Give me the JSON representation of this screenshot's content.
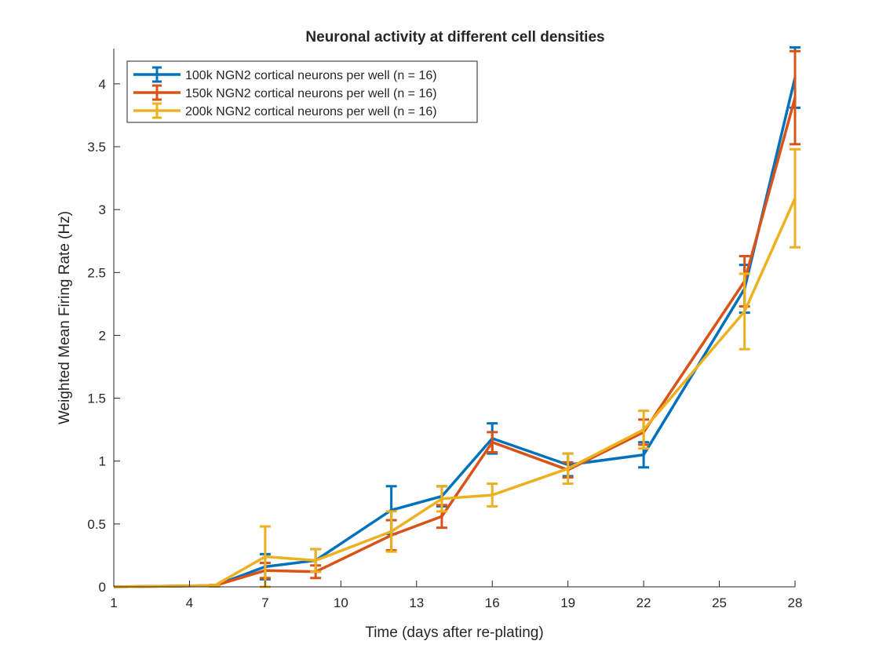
{
  "chart_data": {
    "type": "line",
    "title": "Neuronal activity at different cell densities",
    "xlabel": "Time (days after re-plating)",
    "ylabel": "Weighted Mean Firing Rate (Hz)",
    "xlim": [
      1,
      28
    ],
    "ylim": [
      0,
      4.28
    ],
    "x_ticks": [
      1,
      4,
      7,
      10,
      13,
      16,
      19,
      22,
      25,
      28
    ],
    "y_ticks": [
      0,
      0.5,
      1,
      1.5,
      2,
      2.5,
      3,
      3.5,
      4
    ],
    "y_tick_labels": [
      "0",
      "0.5",
      "1",
      "1.5",
      "2",
      "2.5",
      "3",
      "3.5",
      "4"
    ],
    "grid": false,
    "legend_position": "top-left",
    "x": [
      1,
      5,
      7,
      9,
      12,
      14,
      16,
      19,
      22,
      26,
      28
    ],
    "series": [
      {
        "name": "100k NGN2 cortical neurons per well (n = 16)",
        "color": "#0072BD",
        "values": [
          0,
          0.01,
          0.16,
          0.21,
          0.61,
          0.72,
          1.18,
          0.97,
          1.05,
          2.37,
          4.05
        ],
        "errors": [
          0,
          0.005,
          0.1,
          0.09,
          0.19,
          0.08,
          0.12,
          0.09,
          0.1,
          0.19,
          0.24
        ]
      },
      {
        "name": "150k NGN2 cortical neurons per well (n = 16)",
        "color": "#D95319",
        "values": [
          0,
          0.01,
          0.13,
          0.12,
          0.41,
          0.56,
          1.15,
          0.93,
          1.23,
          2.43,
          3.89
        ],
        "errors": [
          0,
          0.005,
          0.06,
          0.05,
          0.12,
          0.09,
          0.08,
          0.06,
          0.1,
          0.2,
          0.37
        ]
      },
      {
        "name": "200k NGN2 cortical neurons per well (n = 16)",
        "color": "#EDB120",
        "values": [
          0,
          0.01,
          0.24,
          0.21,
          0.44,
          0.7,
          0.73,
          0.94,
          1.25,
          2.19,
          3.09
        ],
        "errors": [
          0,
          0.005,
          0.24,
          0.09,
          0.16,
          0.1,
          0.09,
          0.12,
          0.15,
          0.3,
          0.39
        ]
      }
    ]
  }
}
